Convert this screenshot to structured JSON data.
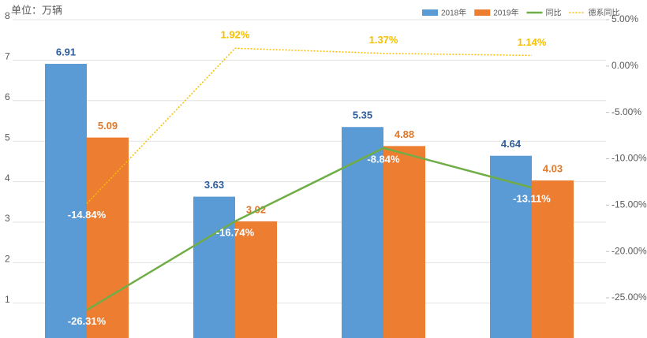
{
  "chart_data": {
    "type": "bar-line",
    "unit_label": "单位：万辆",
    "categories": [
      null,
      null,
      null,
      null
    ],
    "ylim": [
      0.14,
      8
    ],
    "yticks": [
      1,
      2,
      3,
      4,
      5,
      6,
      7,
      8
    ],
    "y2lim": [
      -29.33,
      5
    ],
    "y2ticks": [
      {
        "value": 5,
        "label": "5.00%"
      },
      {
        "value": 0,
        "label": "0.00%"
      },
      {
        "value": -5,
        "label": "-5.00%"
      },
      {
        "value": -10,
        "label": "-10.00%"
      },
      {
        "value": -15,
        "label": "-15.00%"
      },
      {
        "value": -20,
        "label": "-20.00%"
      },
      {
        "value": -25,
        "label": "-25.00%"
      }
    ],
    "grid": true,
    "series": [
      {
        "name": "2018年",
        "type": "bar",
        "color": "#5b9bd5",
        "label_color": "#2e5c9a",
        "values": [
          6.91,
          3.63,
          5.35,
          4.64
        ]
      },
      {
        "name": "2019年",
        "type": "bar",
        "color": "#ed7d31",
        "label_color": "#e0782a",
        "values": [
          5.09,
          3.02,
          4.88,
          4.03
        ]
      },
      {
        "name": "同比",
        "type": "line",
        "axis": "y2",
        "color": "#70ad47",
        "values": [
          -26.31,
          -16.74,
          -8.84,
          -13.11
        ],
        "value_labels": [
          "-26.31%",
          "-16.74%",
          "-8.84%",
          "-13.11%"
        ]
      },
      {
        "name": "德系同比",
        "type": "line",
        "dashed": true,
        "axis": "y2",
        "color": "#f5c000",
        "values": [
          -14.84,
          1.92,
          1.37,
          1.14
        ],
        "value_labels": [
          "-14.84%",
          "1.92%",
          "1.37%",
          "1.14%"
        ]
      }
    ]
  }
}
